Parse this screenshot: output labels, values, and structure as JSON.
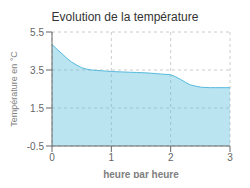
{
  "chart_data": {
    "type": "area",
    "title": "Evolution de la température",
    "xlabel": "heure par heure",
    "ylabel": "Température en °C",
    "color": "#55bbdd",
    "xlim": [
      0,
      3
    ],
    "ylim": [
      -0.5,
      5.5
    ],
    "xticks": [
      0,
      1,
      2,
      3
    ],
    "yticks": [
      -0.5,
      1.5,
      3.5,
      5.5
    ],
    "grid": true,
    "x": [
      0.0,
      0.08,
      0.17,
      0.25,
      0.33,
      0.42,
      0.5,
      0.58,
      0.67,
      0.75,
      0.83,
      0.92,
      1.0,
      1.08,
      1.17,
      1.25,
      1.33,
      1.42,
      1.5,
      1.58,
      1.67,
      1.75,
      1.83,
      1.92,
      2.0,
      2.08,
      2.17,
      2.25,
      2.33,
      2.42,
      2.5,
      2.58,
      2.67,
      2.75,
      2.83,
      2.92,
      3.0
    ],
    "values": [
      4.85,
      4.6,
      4.35,
      4.12,
      3.92,
      3.75,
      3.62,
      3.55,
      3.5,
      3.48,
      3.46,
      3.44,
      3.42,
      3.41,
      3.4,
      3.39,
      3.38,
      3.37,
      3.36,
      3.35,
      3.33,
      3.31,
      3.29,
      3.27,
      3.25,
      3.15,
      3.0,
      2.85,
      2.72,
      2.65,
      2.6,
      2.58,
      2.57,
      2.57,
      2.57,
      2.57,
      2.57
    ]
  }
}
